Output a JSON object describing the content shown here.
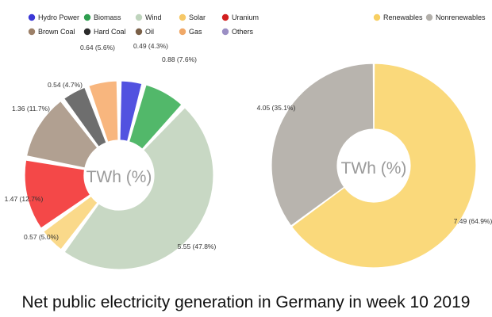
{
  "title": "Net public electricity generation in Germany in week 10 2019",
  "chart_data": [
    {
      "type": "pie",
      "center_label": "TWh (%)",
      "legend_position": "top",
      "categories": [
        "Hydro Power",
        "Biomass",
        "Wind",
        "Solar",
        "Uranium",
        "Brown Coal",
        "Hard Coal",
        "Oil",
        "Gas",
        "Others"
      ],
      "legend_colors": [
        "#3b38d6",
        "#2e9e4f",
        "#bfd4bd",
        "#f6c867",
        "#d21f1f",
        "#9c8068",
        "#2b2b2b",
        "#7a6048",
        "#f0a867",
        "#9b8fc4"
      ],
      "slices": [
        {
          "name": "Hydro Power",
          "value": 0.49,
          "label": "0.49 (4.3%)",
          "color": "#5252e0"
        },
        {
          "name": "Biomass",
          "value": 0.88,
          "label": "0.88 (7.6%)",
          "color": "#52b86a"
        },
        {
          "name": "Wind",
          "value": 5.55,
          "label": "5.55 (47.8%)",
          "color": "#c8d8c4"
        },
        {
          "name": "Solar",
          "value": 0.57,
          "label": "0.57 (5.0%)",
          "color": "#fad98a"
        },
        {
          "name": "Uranium",
          "value": 1.47,
          "label": "1.47 (12.7%)",
          "color": "#f44848"
        },
        {
          "name": "Brown Coal",
          "value": 1.36,
          "label": "1.36 (11.7%)",
          "color": "#b1a091"
        },
        {
          "name": "Hard Coal",
          "value": 0.54,
          "label": "0.54 (4.7%)",
          "color": "#6e6e6e"
        },
        {
          "name": "Gas",
          "value": 0.64,
          "label": "0.64 (5.6%)",
          "color": "#f8b67e"
        }
      ]
    },
    {
      "type": "pie",
      "center_label": "TWh (%)",
      "legend_position": "top-right",
      "categories": [
        "Renewables",
        "Nonrenewables"
      ],
      "legend_colors": [
        "#f7cf62",
        "#b3b0ab"
      ],
      "slices": [
        {
          "name": "Renewables",
          "value": 7.49,
          "label": "7.49 (64.9%)",
          "color": "#fad97b"
        },
        {
          "name": "Nonrenewables",
          "value": 4.05,
          "label": "4.05 (35.1%)",
          "color": "#b8b4ae"
        }
      ]
    }
  ]
}
